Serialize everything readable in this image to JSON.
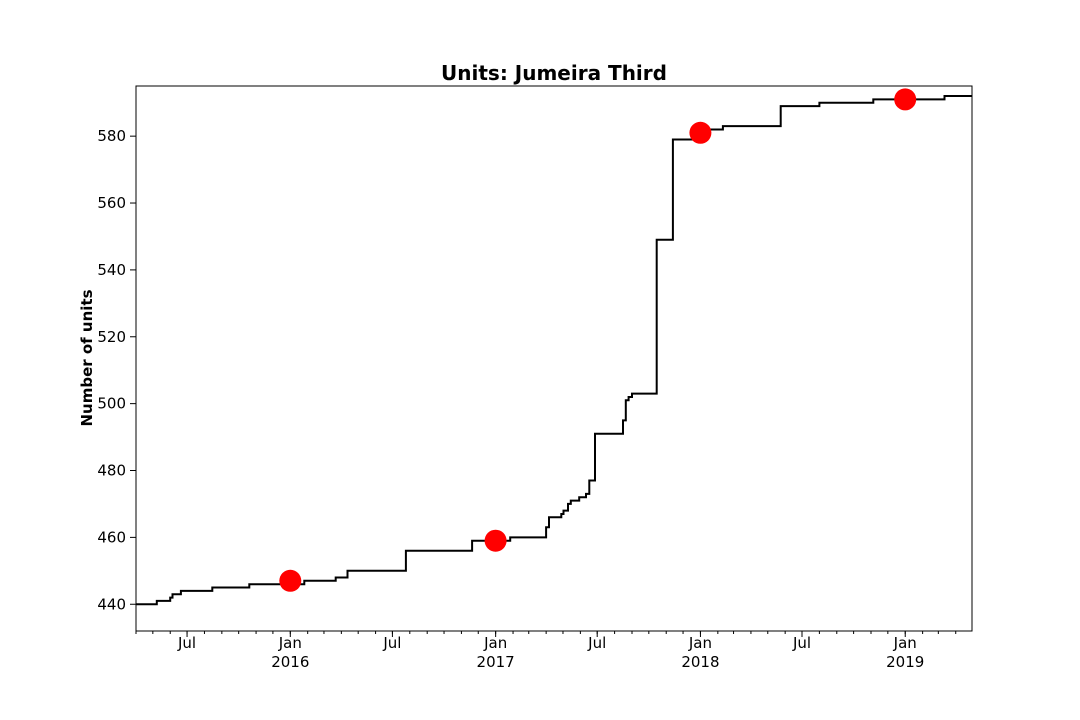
{
  "chart_data": {
    "type": "line",
    "title": "Units: Jumeira Third",
    "xlabel": "",
    "ylabel": "Number of units",
    "grid": false,
    "xlim": [
      "2015-04-01",
      "2019-04-30"
    ],
    "ylim": [
      432,
      595
    ],
    "y_ticks": [
      440,
      460,
      480,
      500,
      520,
      540,
      560,
      580
    ],
    "x_ticks": [
      {
        "date": "2015-07-01",
        "line1": "Jul",
        "line2": ""
      },
      {
        "date": "2016-01-01",
        "line1": "Jan",
        "line2": "2016"
      },
      {
        "date": "2016-07-01",
        "line1": "Jul",
        "line2": ""
      },
      {
        "date": "2017-01-01",
        "line1": "Jan",
        "line2": "2017"
      },
      {
        "date": "2017-07-01",
        "line1": "Jul",
        "line2": ""
      },
      {
        "date": "2018-01-01",
        "line1": "Jan",
        "line2": "2018"
      },
      {
        "date": "2018-07-01",
        "line1": "Jul",
        "line2": ""
      },
      {
        "date": "2019-01-01",
        "line1": "Jan",
        "line2": "2019"
      }
    ],
    "series": [
      {
        "color": "#000000",
        "step": true,
        "points": [
          [
            "2015-04-01",
            440
          ],
          [
            "2015-05-08",
            441
          ],
          [
            "2015-06-01",
            442
          ],
          [
            "2015-06-05",
            443
          ],
          [
            "2015-06-20",
            444
          ],
          [
            "2015-08-15",
            445
          ],
          [
            "2015-10-20",
            446
          ],
          [
            "2016-01-26",
            447
          ],
          [
            "2016-03-22",
            448
          ],
          [
            "2016-04-12",
            450
          ],
          [
            "2016-07-25",
            456
          ],
          [
            "2016-11-20",
            459
          ],
          [
            "2017-01-27",
            460
          ],
          [
            "2017-04-01",
            463
          ],
          [
            "2017-04-06",
            466
          ],
          [
            "2017-04-28",
            467
          ],
          [
            "2017-05-02",
            468
          ],
          [
            "2017-05-10",
            470
          ],
          [
            "2017-05-15",
            471
          ],
          [
            "2017-05-30",
            472
          ],
          [
            "2017-06-11",
            473
          ],
          [
            "2017-06-17",
            477
          ],
          [
            "2017-06-27",
            491
          ],
          [
            "2017-08-16",
            495
          ],
          [
            "2017-08-21",
            501
          ],
          [
            "2017-08-26",
            502
          ],
          [
            "2017-09-01",
            503
          ],
          [
            "2017-10-15",
            549
          ],
          [
            "2017-11-13",
            579
          ],
          [
            "2018-01-01",
            582
          ],
          [
            "2018-02-10",
            583
          ],
          [
            "2018-05-24",
            589
          ],
          [
            "2018-08-01",
            590
          ],
          [
            "2018-11-05",
            591
          ],
          [
            "2019-03-12",
            592
          ],
          [
            "2019-04-30",
            592
          ]
        ]
      }
    ],
    "markers": {
      "color": "#ff0000",
      "points": [
        [
          "2016-01-01",
          447
        ],
        [
          "2017-01-01",
          459
        ],
        [
          "2018-01-01",
          581
        ],
        [
          "2019-01-01",
          591
        ]
      ]
    }
  }
}
